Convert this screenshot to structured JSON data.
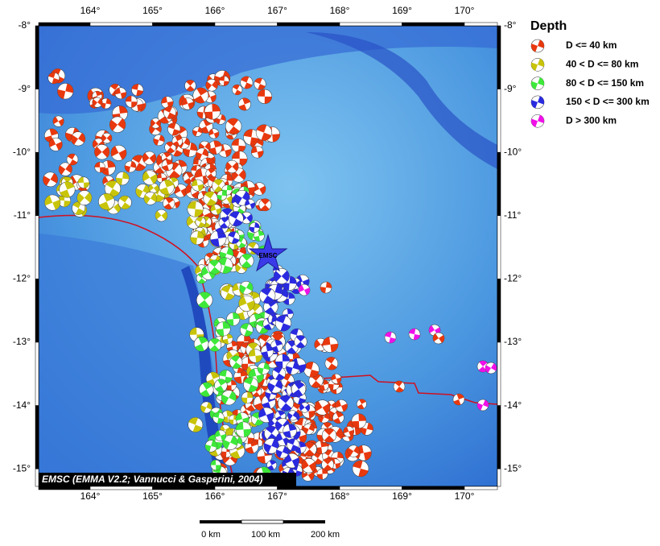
{
  "map": {
    "lon_ticks": [
      "164°",
      "165°",
      "166°",
      "167°",
      "168°",
      "169°",
      "170°"
    ],
    "lat_ticks": [
      "-8°",
      "-9°",
      "-10°",
      "-11°",
      "-12°",
      "-13°",
      "-14°",
      "-15°"
    ],
    "epicenter_label": "EMSC",
    "credit": "EMSC (EMMA V2.2; Vannucci & Gasperini, 2004)",
    "scale_bar": [
      "0 km",
      "100 km",
      "200 km"
    ]
  },
  "legend": {
    "title": "Depth",
    "items": [
      {
        "label": "D <= 40 km",
        "color": "#e8380e"
      },
      {
        "label": "40 < D <= 80 km",
        "color": "#c8c40a"
      },
      {
        "label": "80 < D <= 150 km",
        "color": "#3ee83a"
      },
      {
        "label": "150 < D <= 300 km",
        "color": "#2a2ae0"
      },
      {
        "label": "D > 300 km",
        "color": "#f010e8"
      }
    ]
  }
}
